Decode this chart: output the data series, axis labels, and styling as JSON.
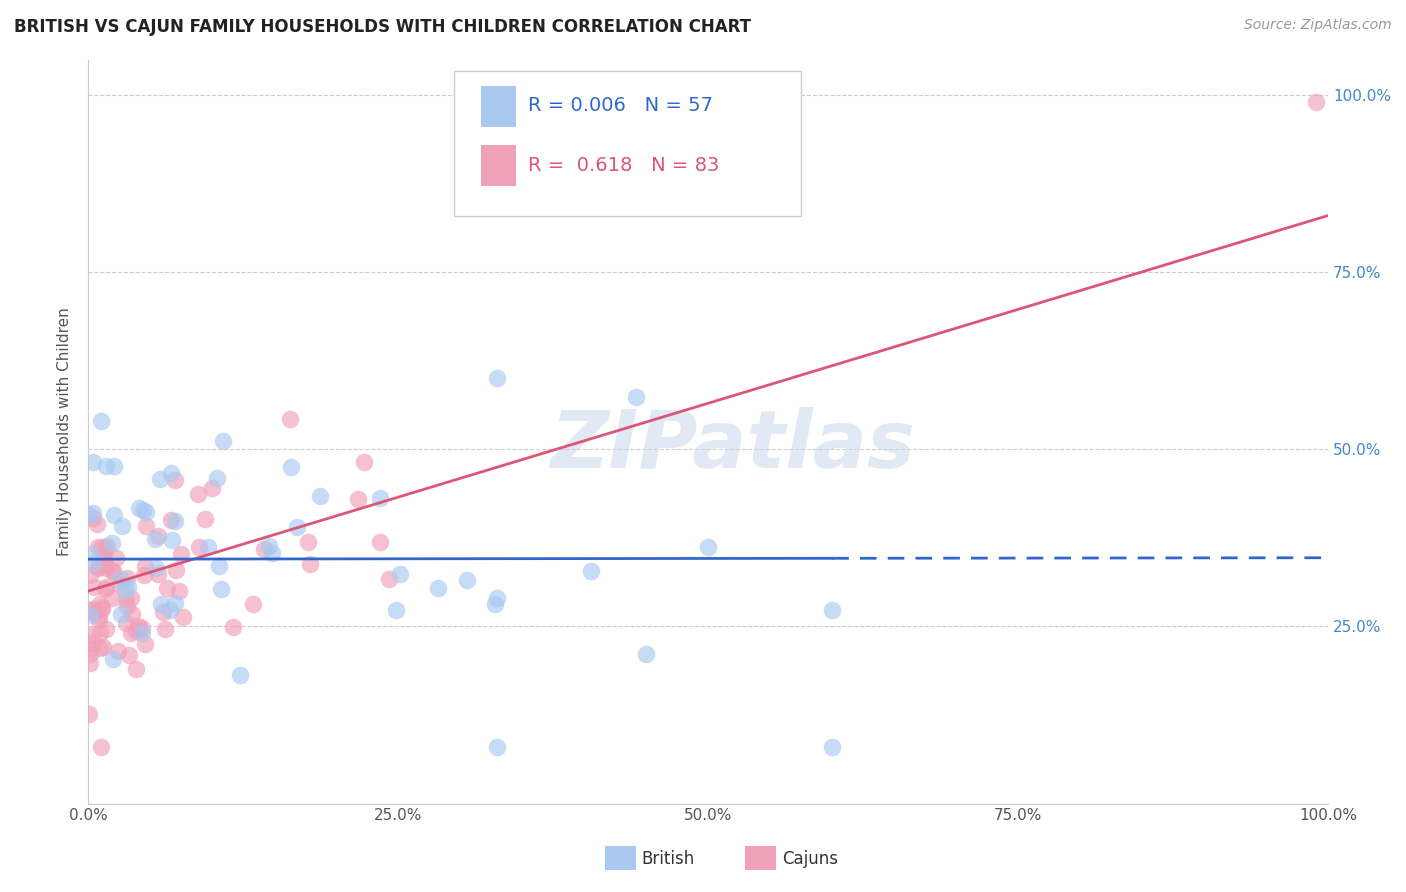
{
  "title": "BRITISH VS CAJUN FAMILY HOUSEHOLDS WITH CHILDREN CORRELATION CHART",
  "source": "Source: ZipAtlas.com",
  "ylabel": "Family Households with Children",
  "british_R": 0.006,
  "british_N": 57,
  "cajun_R": 0.618,
  "cajun_N": 83,
  "british_color": "#a8c8f0",
  "cajun_color": "#f0a0b8",
  "british_line_color": "#3366cc",
  "cajun_line_color": "#dd5577",
  "legend_label_british": "British",
  "legend_label_cajun": "Cajuns",
  "watermark": "ZIPatlas",
  "watermark_color": "#c8d8ec",
  "xlim": [
    0.0,
    1.0
  ],
  "ylim": [
    0.0,
    1.05
  ],
  "ytick_right_color": "#4488cc",
  "scatter_size": 160,
  "scatter_alpha": 0.65
}
